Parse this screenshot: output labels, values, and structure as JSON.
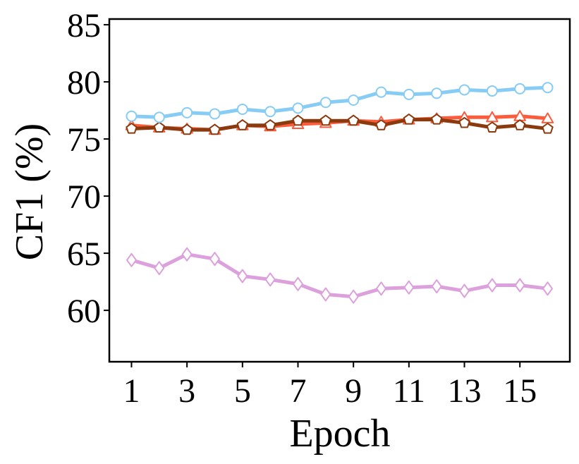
{
  "chart_data": {
    "type": "line",
    "title": "",
    "xlabel": "Epoch",
    "ylabel": "CF1 (%)",
    "xlim": [
      0.2,
      16.8
    ],
    "ylim": [
      55.5,
      85.5
    ],
    "xticks": [
      1,
      3,
      5,
      7,
      9,
      11,
      13,
      15
    ],
    "yticks": [
      60,
      65,
      70,
      75,
      80,
      85
    ],
    "grid": false,
    "legend": "none",
    "x": [
      1,
      2,
      3,
      4,
      5,
      6,
      7,
      8,
      9,
      10,
      11,
      12,
      13,
      14,
      15,
      16
    ],
    "series": [
      {
        "color": "#fa5c3c",
        "marker": "triangle",
        "values": [
          76.2,
          76.0,
          75.9,
          75.8,
          76.2,
          76.1,
          76.3,
          76.4,
          76.6,
          76.5,
          76.7,
          76.8,
          76.9,
          76.9,
          77.0,
          76.8
        ]
      },
      {
        "color": "#8b3a0e",
        "marker": "pentagon",
        "values": [
          75.9,
          76.0,
          75.8,
          75.8,
          76.2,
          76.2,
          76.6,
          76.6,
          76.6,
          76.2,
          76.7,
          76.7,
          76.4,
          76.0,
          76.2,
          75.9
        ]
      },
      {
        "color": "#87ccf5",
        "marker": "circle",
        "values": [
          77.0,
          76.9,
          77.3,
          77.2,
          77.6,
          77.4,
          77.7,
          78.2,
          78.4,
          79.1,
          78.9,
          79.0,
          79.3,
          79.2,
          79.4,
          79.5
        ]
      },
      {
        "color": "#dca0dc",
        "marker": "diamond",
        "values": [
          64.4,
          63.7,
          64.9,
          64.5,
          63.0,
          62.7,
          62.3,
          61.4,
          61.2,
          61.9,
          62.0,
          62.1,
          61.7,
          62.2,
          62.2,
          61.9
        ]
      }
    ]
  }
}
